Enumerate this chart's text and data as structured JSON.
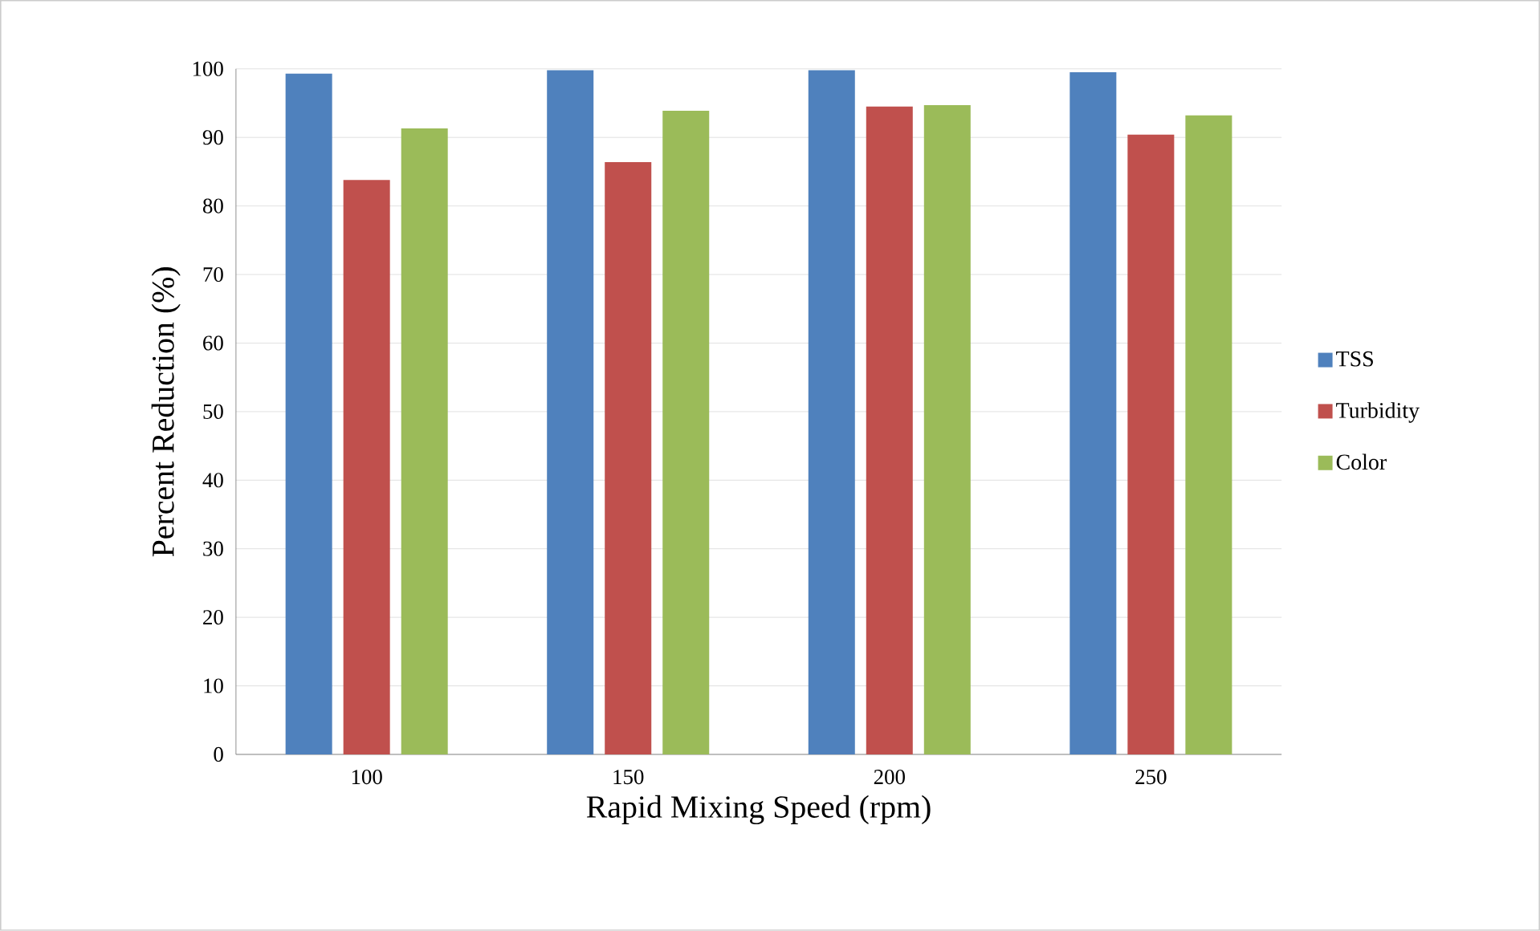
{
  "chart_data": {
    "type": "bar",
    "xlabel": "Rapid Mixing Speed (rpm)",
    "ylabel": "Percent Reduction (%)",
    "categories": [
      "100",
      "150",
      "200",
      "250"
    ],
    "series": [
      {
        "name": "TSS",
        "color": "#4f81bd",
        "values": [
          99.3,
          99.8,
          99.8,
          99.5
        ]
      },
      {
        "name": "Turbidity",
        "color": "#c0504d",
        "values": [
          83.8,
          86.4,
          94.5,
          90.4
        ]
      },
      {
        "name": "Color",
        "color": "#9bbb59",
        "values": [
          91.3,
          93.9,
          94.7,
          93.2
        ]
      }
    ],
    "ylim": [
      0,
      100
    ],
    "yticks": [
      0,
      10,
      20,
      30,
      40,
      50,
      60,
      70,
      80,
      90,
      100
    ],
    "grid": "y",
    "legend": "right"
  }
}
